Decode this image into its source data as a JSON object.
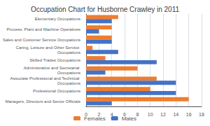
{
  "chart_data": {
    "type": "bar",
    "orientation": "horizontal",
    "title": "Occupation Chart for Husborne Crawley in 2011",
    "categories": [
      "Managers, Directors and Senior Officials",
      "Professional Occupations",
      "Associate Professional and Technical Occupations",
      "Administrative and Secretarial Occupations",
      "Skilled Trades Occupations",
      "Caring, Leisure and Other Service Occupations",
      "Sales and Customer Service Occupations",
      "Process, Plant and Machine Operatives",
      "Elementary Occupations"
    ],
    "series": [
      {
        "name": "Females",
        "color": "#ed7d31",
        "values": [
          16,
          10,
          11,
          8,
          3,
          1,
          4,
          4,
          5
        ]
      },
      {
        "name": "Males",
        "color": "#4472c4",
        "values": [
          4,
          14,
          14,
          3,
          11,
          5,
          4,
          2,
          4
        ]
      }
    ],
    "xlim": [
      0,
      18
    ],
    "xticks": [
      0,
      2,
      4,
      6,
      8,
      10,
      12,
      14,
      16,
      18
    ],
    "grid": true,
    "legend": "bottom"
  }
}
